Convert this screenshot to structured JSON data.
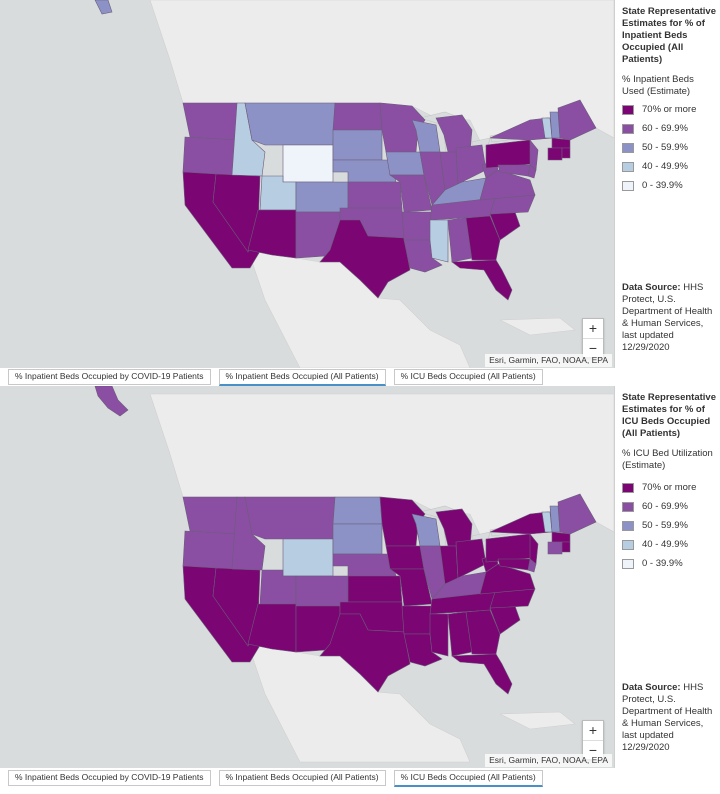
{
  "colors": {
    "bin_70_plus": "#7b0573",
    "bin_60_69": "#8a4fa3",
    "bin_50_59": "#8c92c6",
    "bin_40_49": "#b7cde2",
    "bin_0_39": "#eef4f9",
    "land": "#ececec",
    "water": "#d9dcdd"
  },
  "top_panel": {
    "legend": {
      "title": "State Representative Estimates for % of Inpatient Beds Occupied (All Patients)",
      "subtitle": "% Inpatient Beds Used (Estimate)",
      "items": [
        {
          "label": "70% or more",
          "color": "#7b0573"
        },
        {
          "label": "60 - 69.9%",
          "color": "#8a4fa3"
        },
        {
          "label": "50 - 59.9%",
          "color": "#8c92c6"
        },
        {
          "label": "40 - 49.9%",
          "color": "#b7cde2"
        },
        {
          "label": "0 - 39.9%",
          "color": "#eef4f9"
        }
      ],
      "source_label": "Data Source:",
      "source_text": "HHS Protect, U.S. Department of Health & Human Services, last updated 12/29/2020"
    },
    "zoom_in": "+",
    "zoom_out": "−",
    "attribution": "Esri, Garmin, FAO, NOAA, EPA",
    "tabs": [
      {
        "label": "% Inpatient Beds Occupied by COVID-19 Patients",
        "active": false
      },
      {
        "label": "% Inpatient Beds Occupied (All Patients)",
        "active": true
      },
      {
        "label": "% ICU Beds Occupied (All Patients)",
        "active": false
      }
    ]
  },
  "bottom_panel": {
    "legend": {
      "title": "State Representative Estimates for % of ICU Beds Occupied (All Patients)",
      "subtitle": "% ICU Bed Utilization (Estimate)",
      "items": [
        {
          "label": "70% or more",
          "color": "#7b0573"
        },
        {
          "label": "60 - 69.9%",
          "color": "#8a4fa3"
        },
        {
          "label": "50 - 59.9%",
          "color": "#8c92c6"
        },
        {
          "label": "40 - 49.9%",
          "color": "#b7cde2"
        },
        {
          "label": "0 - 39.9%",
          "color": "#eef4f9"
        }
      ],
      "source_label": "Data Source:",
      "source_text": "HHS Protect, U.S. Department of Health & Human Services, last updated 12/29/2020"
    },
    "zoom_in": "+",
    "zoom_out": "−",
    "attribution": "Esri, Garmin, FAO, NOAA, EPA",
    "tabs": [
      {
        "label": "% Inpatient Beds Occupied by COVID-19 Patients",
        "active": false
      },
      {
        "label": "% Inpatient Beds Occupied (All Patients)",
        "active": false
      },
      {
        "label": "% ICU Beds Occupied (All Patients)",
        "active": true
      }
    ]
  },
  "state_bins_inpatient": {
    "WA": "60",
    "OR": "60",
    "CA": "70",
    "NV": "70",
    "ID": "40",
    "MT": "50",
    "WY": "0",
    "UT": "40",
    "AZ": "70",
    "CO": "50",
    "NM": "60",
    "ND": "60",
    "SD": "50",
    "NE": "50",
    "KS": "60",
    "OK": "60",
    "TX": "70",
    "MN": "60",
    "IA": "50",
    "MO": "60",
    "AR": "60",
    "LA": "60",
    "WI": "50",
    "IL": "60",
    "MI": "60",
    "IN": "60",
    "OH": "60",
    "KY": "50",
    "TN": "60",
    "MS": "40",
    "AL": "60",
    "GA": "70",
    "FL": "70",
    "SC": "70",
    "NC": "60",
    "VA": "60",
    "WV": "60",
    "PA": "70",
    "NY": "60",
    "NJ": "60",
    "DE": "60",
    "MD": "60",
    "CT": "70",
    "RI": "70",
    "MA": "70",
    "VT": "40",
    "NH": "50",
    "ME": "60"
  },
  "state_bins_icu": {
    "WA": "60",
    "OR": "60",
    "CA": "70",
    "NV": "70",
    "ID": "60",
    "MT": "60",
    "WY": "40",
    "UT": "60",
    "AZ": "70",
    "CO": "60",
    "NM": "70",
    "ND": "50",
    "SD": "50",
    "NE": "60",
    "KS": "70",
    "OK": "70",
    "TX": "70",
    "MN": "70",
    "IA": "70",
    "MO": "70",
    "AR": "70",
    "LA": "70",
    "WI": "50",
    "IL": "60",
    "MI": "70",
    "IN": "70",
    "OH": "70",
    "KY": "60",
    "TN": "70",
    "MS": "70",
    "AL": "70",
    "GA": "70",
    "FL": "70",
    "SC": "70",
    "NC": "70",
    "VA": "70",
    "WV": "70",
    "PA": "70",
    "NY": "70",
    "NJ": "70",
    "DE": "60",
    "MD": "70",
    "CT": "60",
    "RI": "70",
    "MA": "70",
    "VT": "40",
    "NH": "50",
    "ME": "60"
  }
}
